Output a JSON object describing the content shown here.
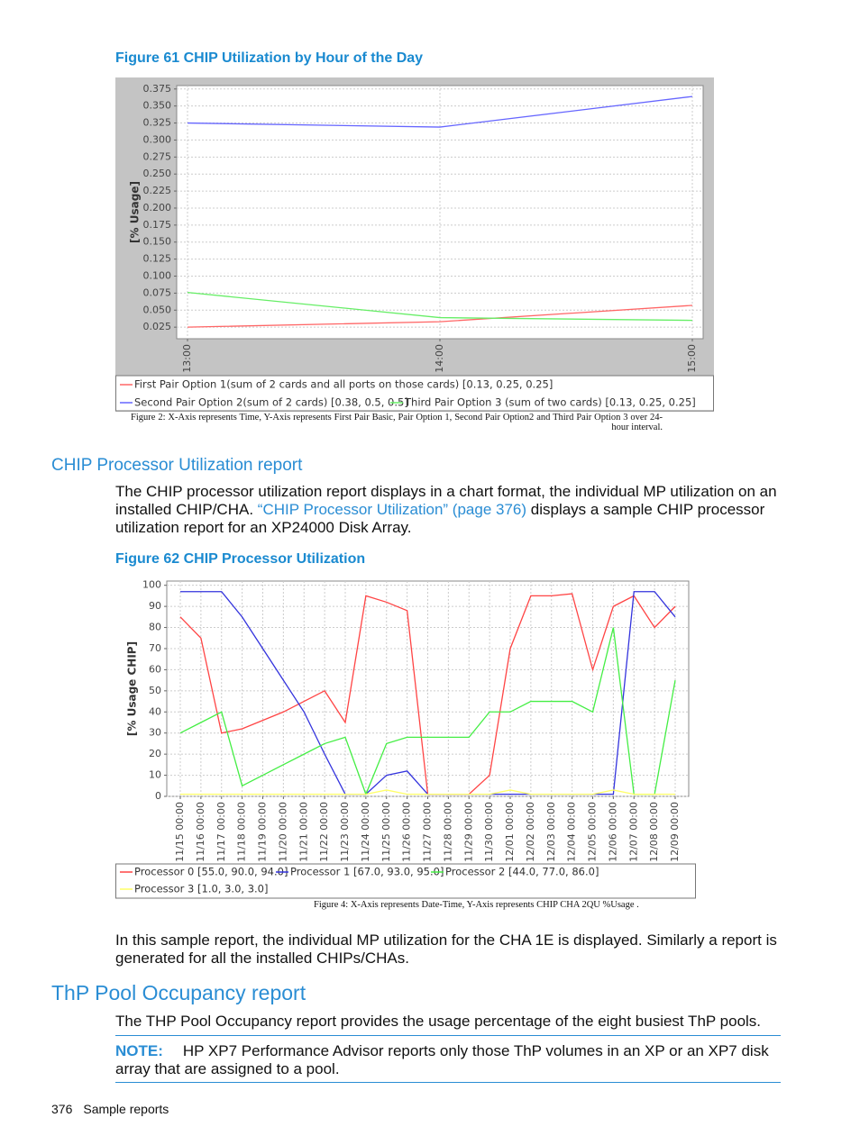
{
  "chart_data": [
    {
      "type": "line",
      "title": "Figure 61 CHIP Utilization by Hour of the Day",
      "y_label": "[% Usage]",
      "categories": [
        "13:00",
        "14:00",
        "15:00"
      ],
      "series": [
        {
          "name": "First Pair Option 1(sum of 2 cards and all ports on those cards) [0.13, 0.25, 0.25]",
          "color": "#ff6666",
          "values": [
            0.025,
            0.033,
            0.057
          ]
        },
        {
          "name": "Second Pair Option 2(sum of 2 cards) [0.38, 0.5, 0.5]",
          "color": "#6666ff",
          "values": [
            0.325,
            0.319,
            0.364
          ]
        },
        {
          "name": "Third Pair Option 3 (sum of two cards) [0.13, 0.25, 0.25]",
          "color": "#66ee66",
          "values": [
            0.076,
            0.039,
            0.035
          ]
        }
      ],
      "ylim": [
        0.008,
        0.38
      ],
      "yticks": [
        0.025,
        {
          "value": 0.05,
          "label": "0.050"
        },
        0.075,
        {
          "value": 0.1,
          "label": "0.100"
        },
        0.125,
        {
          "value": 0.15,
          "label": "0.150"
        },
        0.175,
        {
          "value": 0.2,
          "label": "0.200"
        },
        0.225,
        {
          "value": 0.25,
          "label": "0.250"
        },
        0.275,
        {
          "value": 0.3,
          "label": "0.300"
        },
        0.325,
        {
          "value": 0.35,
          "label": "0.350"
        },
        0.375
      ],
      "grid": true,
      "caption": "Figure 2: X-Axis represents Time, Y-Axis represents First Pair Basic, Pair Option 1, Second Pair Option2 and Third Pair Option 3 over 24-hour interval."
    },
    {
      "type": "line",
      "title": "Figure 62 CHIP Processor Utilization",
      "y_label": "[% Usage CHIP]",
      "categories": [
        "11/15 00:00",
        "11/16 00:00",
        "11/17 00:00",
        "11/18 00:00",
        "11/19 00:00",
        "11/20 00:00",
        "11/21 00:00",
        "11/22 00:00",
        "11/23 00:00",
        "11/24 00:00",
        "11/25 00:00",
        "11/26 00:00",
        "11/27 00:00",
        "11/28 00:00",
        "11/29 00:00",
        "11/30 00:00",
        "12/01 00:00",
        "12/02 00:00",
        "12/03 00:00",
        "12/04 00:00",
        "12/05 00:00",
        "12/06 00:00",
        "12/07 00:00",
        "12/08 00:00",
        "12/09 00:00"
      ],
      "series": [
        {
          "name": "Processor 0 [55.0, 90.0, 94.0]",
          "color": "#ff4444",
          "values": [
            85,
            75,
            30,
            32,
            36,
            40,
            45,
            50,
            35,
            95,
            92,
            88,
            1,
            1,
            1,
            10,
            70,
            95,
            95,
            96,
            60,
            90,
            95,
            80,
            90
          ]
        },
        {
          "name": "Processor 1 [67.0, 93.0, 95.0]",
          "color": "#3333dd",
          "values": [
            97,
            97,
            97,
            85,
            70,
            55,
            40,
            20,
            1,
            1,
            10,
            12,
            1,
            1,
            1,
            1,
            1,
            1,
            1,
            1,
            1,
            1,
            97,
            97,
            85
          ]
        },
        {
          "name": "Processor 2 [44.0, 77.0, 86.0]",
          "color": "#44ee44",
          "values": [
            30,
            35,
            40,
            5,
            10,
            15,
            20,
            25,
            28,
            1,
            25,
            28,
            28,
            28,
            28,
            40,
            40,
            45,
            45,
            45,
            40,
            80,
            1,
            1,
            55
          ]
        },
        {
          "name": "Processor 3 [1.0, 3.0, 3.0]",
          "color": "#ffff66",
          "values": [
            1,
            1,
            1,
            1,
            1,
            1,
            1,
            1,
            1,
            1,
            3,
            1,
            1,
            1,
            1,
            1,
            3,
            1,
            1,
            1,
            1,
            3,
            1,
            1,
            1
          ]
        }
      ],
      "ylim": [
        0,
        102
      ],
      "yticks": [
        0,
        10,
        20,
        30,
        40,
        50,
        60,
        70,
        80,
        90,
        100
      ],
      "grid": true,
      "caption": "Figure 4: X-Axis represents Date-Time, Y-Axis represents CHIP CHA 2QU %Usage ."
    }
  ],
  "document": {
    "section1": {
      "heading": "CHIP Processor Utilization report",
      "paragraph": {
        "before": "The CHIP processor utilization report displays in a chart format, the individual MP utilization on an installed CHIP/CHA. ",
        "link": "“CHIP Processor Utilization” (page 376)",
        "after": " displays a sample CHIP processor utilization report for an XP24000 Disk Array."
      }
    },
    "paragraph2": "In this sample report, the individual MP utilization for the CHA 1E is displayed. Similarly a report is generated for all the installed CHIPs/CHAs.",
    "section2": {
      "heading": "ThP Pool Occupancy report",
      "paragraph": "The THP Pool Occupancy report provides the usage percentage of the eight busiest ThP pools.",
      "note": {
        "label": "NOTE:",
        "text": "HP XP7 Performance Advisor reports only those ThP volumes in an XP or an XP7 disk array that are assigned to a pool."
      }
    },
    "footer": {
      "page": "376",
      "section": "Sample reports"
    }
  }
}
